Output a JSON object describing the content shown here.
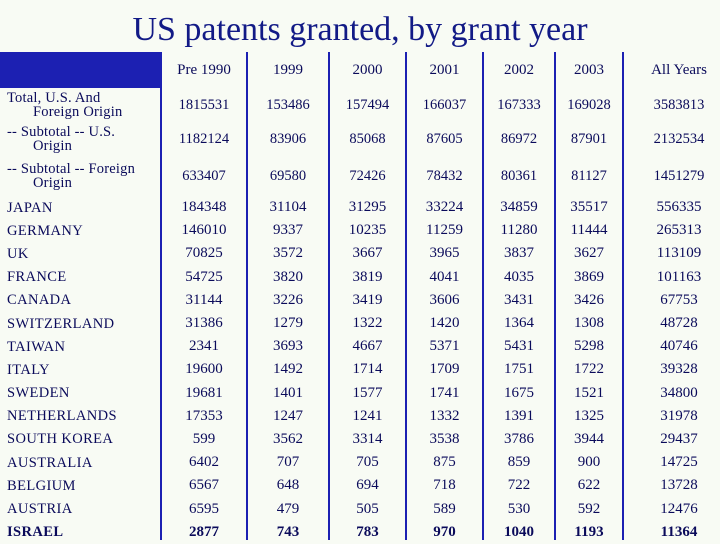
{
  "title": "US patents granted, by grant year",
  "columns": [
    "Pre 1990",
    "1999",
    "2000",
    "2001",
    "2002",
    "2003",
    "All Years"
  ],
  "aggregate_rows": [
    {
      "label_l1": "Total, U.S. And",
      "label_l2": "Foreign Origin",
      "values": [
        "1815531",
        "153486",
        "157494",
        "166037",
        "167333",
        "169028",
        "3583813"
      ]
    },
    {
      "label_l1": "-- Subtotal -- U.S.",
      "label_l2": "Origin",
      "values": [
        "1182124",
        "83906",
        "85068",
        "87605",
        "86972",
        "87901",
        "2132534"
      ]
    },
    {
      "label_l1": "-- Subtotal -- Foreign",
      "label_l2": "Origin",
      "values": [
        "633407",
        "69580",
        "72426",
        "78432",
        "80361",
        "81127",
        "1451279"
      ]
    }
  ],
  "country_rows": [
    {
      "label": "JAPAN",
      "values": [
        "184348",
        "31104",
        "31295",
        "33224",
        "34859",
        "35517",
        "556335"
      ]
    },
    {
      "label": "GERMANY",
      "values": [
        "146010",
        "9337",
        "10235",
        "11259",
        "11280",
        "11444",
        "265313"
      ]
    },
    {
      "label": "UK",
      "values": [
        "70825",
        "3572",
        "3667",
        "3965",
        "3837",
        "3627",
        "113109"
      ]
    },
    {
      "label": "FRANCE",
      "values": [
        "54725",
        "3820",
        "3819",
        "4041",
        "4035",
        "3869",
        "101163"
      ]
    },
    {
      "label": "CANADA",
      "values": [
        "31144",
        "3226",
        "3419",
        "3606",
        "3431",
        "3426",
        "67753"
      ]
    },
    {
      "label": "SWITZERLAND",
      "values": [
        "31386",
        "1279",
        "1322",
        "1420",
        "1364",
        "1308",
        "48728"
      ]
    },
    {
      "label": "TAIWAN",
      "values": [
        "2341",
        "3693",
        "4667",
        "5371",
        "5431",
        "5298",
        "40746"
      ]
    },
    {
      "label": "ITALY",
      "values": [
        "19600",
        "1492",
        "1714",
        "1709",
        "1751",
        "1722",
        "39328"
      ]
    },
    {
      "label": "SWEDEN",
      "values": [
        "19681",
        "1401",
        "1577",
        "1741",
        "1675",
        "1521",
        "34800"
      ]
    },
    {
      "label": "NETHERLANDS",
      "values": [
        "17353",
        "1247",
        "1241",
        "1332",
        "1391",
        "1325",
        "31978"
      ]
    },
    {
      "label": "SOUTH KOREA",
      "values": [
        "599",
        "3562",
        "3314",
        "3538",
        "3786",
        "3944",
        "29437"
      ]
    },
    {
      "label": "AUSTRALIA",
      "values": [
        "6402",
        "707",
        "705",
        "875",
        "859",
        "900",
        "14725"
      ]
    },
    {
      "label": "BELGIUM",
      "values": [
        "6567",
        "648",
        "694",
        "718",
        "722",
        "622",
        "13728"
      ]
    },
    {
      "label": "AUSTRIA",
      "values": [
        "6595",
        "479",
        "505",
        "589",
        "530",
        "592",
        "12476"
      ]
    },
    {
      "label": "ISRAEL",
      "values": [
        "2877",
        "743",
        "783",
        "970",
        "1040",
        "1193",
        "11364"
      ]
    }
  ]
}
